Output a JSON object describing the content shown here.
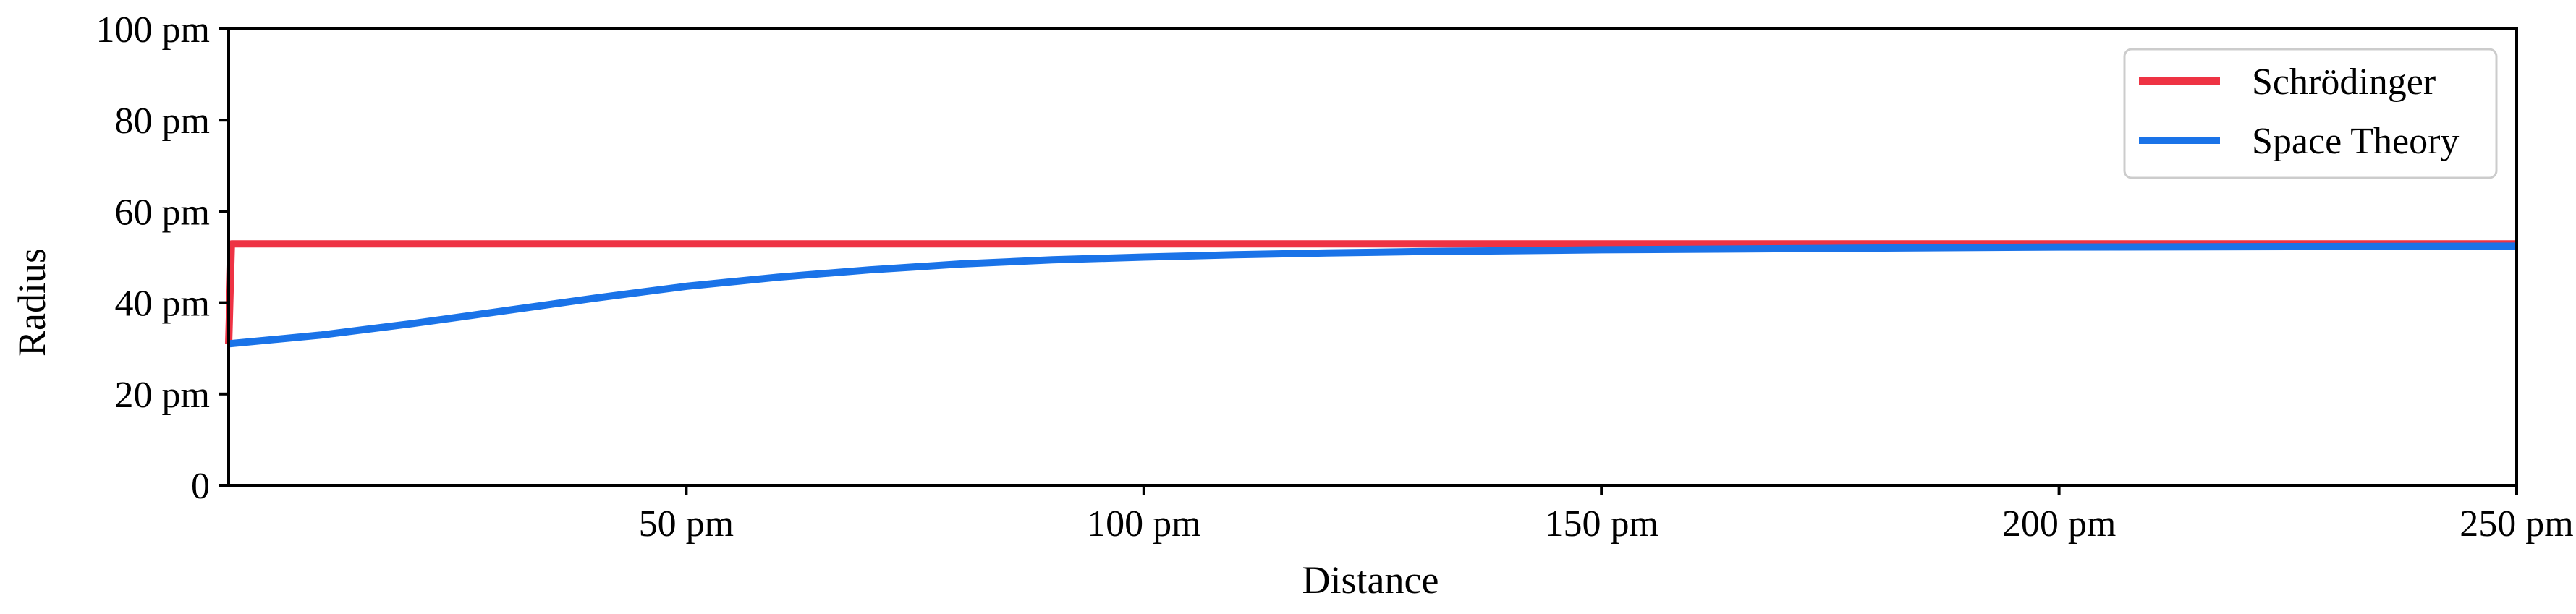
{
  "chart_data": {
    "type": "line",
    "title": "",
    "xlabel": "Distance",
    "ylabel": "Radius",
    "xlim": [
      0,
      250
    ],
    "ylim": [
      0,
      100
    ],
    "x_unit": "pm",
    "y_unit": "pm",
    "x_ticks": [
      50,
      100,
      150,
      200,
      250
    ],
    "x_tick_labels": [
      "50 pm",
      "100 pm",
      "150 pm",
      "200 pm",
      "250 pm"
    ],
    "y_ticks": [
      0,
      20,
      40,
      60,
      80,
      100
    ],
    "y_tick_labels": [
      "0",
      "20 pm",
      "40 pm",
      "60 pm",
      "80 pm",
      "100 pm"
    ],
    "grid": false,
    "legend_position": "top-right",
    "series": [
      {
        "name": "Schrödinger",
        "color": "#ee3344",
        "points": [
          [
            0,
            31
          ],
          [
            0.3,
            52.9
          ],
          [
            250,
            52.9
          ]
        ]
      },
      {
        "name": "Space Theory",
        "color": "#1a73e8",
        "points": [
          [
            0,
            31.0
          ],
          [
            10,
            32.9
          ],
          [
            20,
            35.4
          ],
          [
            30,
            38.2
          ],
          [
            40,
            41.0
          ],
          [
            50,
            43.6
          ],
          [
            60,
            45.6
          ],
          [
            70,
            47.2
          ],
          [
            80,
            48.5
          ],
          [
            90,
            49.4
          ],
          [
            100,
            50.0
          ],
          [
            110,
            50.5
          ],
          [
            120,
            50.9
          ],
          [
            130,
            51.2
          ],
          [
            140,
            51.4
          ],
          [
            150,
            51.6
          ],
          [
            175,
            51.9
          ],
          [
            200,
            52.2
          ],
          [
            225,
            52.3
          ],
          [
            250,
            52.4
          ]
        ]
      }
    ]
  }
}
